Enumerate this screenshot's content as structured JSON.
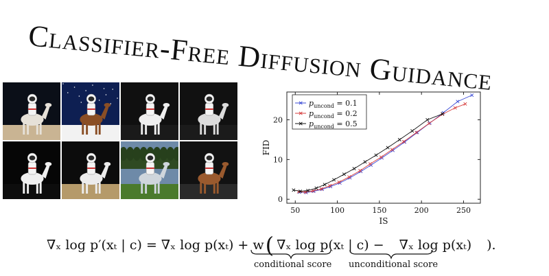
{
  "title": "Classifier-Free Diffusion Guidance",
  "images": [
    {
      "icon": "astronaut-riding-rearing-horse-image"
    },
    {
      "icon": "astronaut-riding-brown-horse-starry-night-image"
    },
    {
      "icon": "astronaut-riding-white-horse-image"
    },
    {
      "icon": "astronaut-riding-rearing-horse-dark-image"
    },
    {
      "icon": "astronaut-riding-white-horse-dark-image"
    },
    {
      "icon": "astronaut-riding-white-horse-sand-image"
    },
    {
      "icon": "astronaut-riding-horse-forest-image"
    },
    {
      "icon": "astronaut-riding-brown-horse-portrait-image"
    }
  ],
  "chart_data": {
    "type": "line",
    "xlabel": "IS",
    "ylabel": "FID",
    "xlim": [
      40,
      270
    ],
    "ylim": [
      -1,
      27
    ],
    "xticks": [
      50,
      100,
      150,
      200,
      250
    ],
    "yticks": [
      0,
      10,
      20
    ],
    "legend_position": "top-left",
    "series": [
      {
        "name": "p_uncond = 0.1",
        "legend_prefix": "p",
        "legend_sub": "uncond",
        "legend_suffix": " = 0.1",
        "color": "#3b4bd6",
        "marker": "x",
        "points": [
          [
            55,
            1.8
          ],
          [
            63,
            1.7
          ],
          [
            72,
            2.0
          ],
          [
            82,
            2.5
          ],
          [
            92,
            3.2
          ],
          [
            103,
            4.1
          ],
          [
            115,
            5.4
          ],
          [
            128,
            7.0
          ],
          [
            140,
            8.6
          ],
          [
            153,
            10.4
          ],
          [
            166,
            12.3
          ],
          [
            180,
            14.4
          ],
          [
            195,
            16.8
          ],
          [
            210,
            19.2
          ],
          [
            226,
            21.8
          ],
          [
            243,
            24.6
          ],
          [
            260,
            26.2
          ]
        ]
      },
      {
        "name": "p_uncond = 0.2",
        "legend_prefix": "p",
        "legend_sub": "uncond",
        "legend_suffix": " = 0.2",
        "color": "#d63b3b",
        "marker": "x",
        "points": [
          [
            54,
            1.9
          ],
          [
            62,
            1.8
          ],
          [
            71,
            2.1
          ],
          [
            81,
            2.6
          ],
          [
            91,
            3.4
          ],
          [
            102,
            4.3
          ],
          [
            114,
            5.6
          ],
          [
            127,
            7.2
          ],
          [
            139,
            8.9
          ],
          [
            152,
            10.6
          ],
          [
            165,
            12.5
          ],
          [
            179,
            14.5
          ],
          [
            194,
            16.8
          ],
          [
            209,
            19.1
          ],
          [
            225,
            21.4
          ],
          [
            240,
            23.0
          ],
          [
            252,
            24.0
          ]
        ]
      },
      {
        "name": "p_uncond = 0.5",
        "legend_prefix": "p",
        "legend_sub": "uncond",
        "legend_suffix": " = 0.5",
        "color": "#111111",
        "marker": "x",
        "points": [
          [
            48,
            2.3
          ],
          [
            56,
            2.0
          ],
          [
            65,
            2.2
          ],
          [
            75,
            2.8
          ],
          [
            85,
            3.7
          ],
          [
            96,
            4.9
          ],
          [
            108,
            6.3
          ],
          [
            120,
            7.7
          ],
          [
            133,
            9.4
          ],
          [
            146,
            11.1
          ],
          [
            160,
            13.0
          ],
          [
            174,
            15.0
          ],
          [
            189,
            17.2
          ],
          [
            207,
            20.0
          ],
          [
            225,
            21.5
          ]
        ]
      }
    ]
  },
  "equation": {
    "lhs": "∇ₓ log p′(xₜ | c) = ∇ₓ log p(xₜ) + w",
    "cond_term": "∇ₓ log p(xₜ | c) −",
    "uncond_term": "∇ₓ log p(xₜ)",
    "tail": ").",
    "open_paren": "(",
    "cond_label": "conditional score",
    "uncond_label": "unconditional score"
  }
}
